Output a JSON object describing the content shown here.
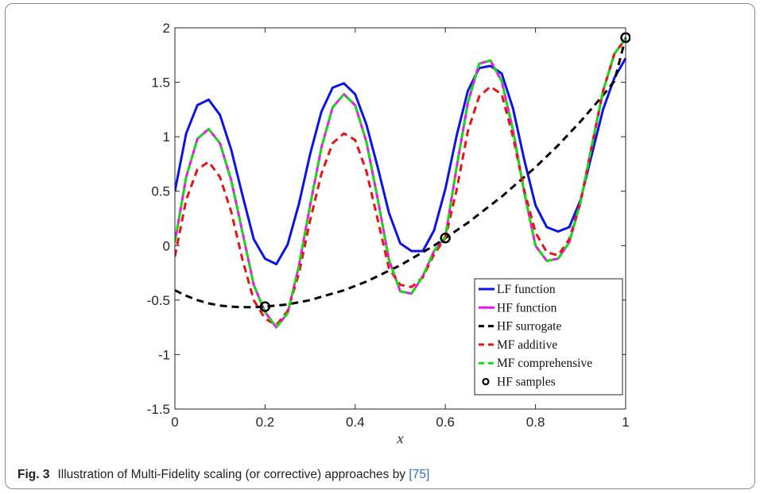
{
  "caption": {
    "label": "Fig. 3",
    "text": "Illustration of Multi-Fidelity scaling (or corrective) approaches by ",
    "ref": "[75]"
  },
  "chart_data": {
    "type": "line",
    "xlabel": "x",
    "ylabel": "",
    "title": "",
    "xlim": [
      0,
      1
    ],
    "ylim": [
      -1.5,
      2
    ],
    "xticks": [
      0,
      0.2,
      0.4,
      0.6,
      0.8,
      1
    ],
    "xtick_labels": [
      "0",
      "0.2",
      "0.4",
      "0.6",
      "0.8",
      "1"
    ],
    "yticks": [
      -1.5,
      -1,
      -0.5,
      0,
      0.5,
      1,
      1.5,
      2
    ],
    "ytick_labels": [
      "-1.5",
      "-1",
      "-0.5",
      "0",
      "0.5",
      "1",
      "1.5",
      "2"
    ],
    "legend_position": "bottom-right",
    "x": [
      0,
      0.025,
      0.05,
      0.075,
      0.1,
      0.125,
      0.15,
      0.175,
      0.2,
      0.225,
      0.25,
      0.275,
      0.3,
      0.325,
      0.35,
      0.375,
      0.4,
      0.425,
      0.45,
      0.475,
      0.5,
      0.525,
      0.55,
      0.575,
      0.6,
      0.625,
      0.65,
      0.675,
      0.7,
      0.725,
      0.75,
      0.775,
      0.8,
      0.825,
      0.85,
      0.875,
      0.9,
      0.925,
      0.95,
      0.975,
      1
    ],
    "series": [
      {
        "name": "LF function",
        "color": "#0a14e6",
        "dash": "solid",
        "values": [
          0.5,
          1.03,
          1.29,
          1.34,
          1.2,
          0.88,
          0.46,
          0.06,
          -0.12,
          -0.17,
          0.01,
          0.38,
          0.84,
          1.23,
          1.45,
          1.49,
          1.39,
          1.11,
          0.72,
          0.3,
          0.02,
          -0.05,
          -0.05,
          0.14,
          0.52,
          1.01,
          1.42,
          1.63,
          1.65,
          1.58,
          1.26,
          0.79,
          0.37,
          0.17,
          0.13,
          0.17,
          0.42,
          0.84,
          1.25,
          1.54,
          1.72
        ]
      },
      {
        "name": "HF function",
        "color": "#f014f0",
        "dash": "solid",
        "values": [
          0.03,
          0.63,
          0.98,
          1.07,
          0.94,
          0.6,
          0.12,
          -0.36,
          -0.61,
          -0.75,
          -0.62,
          -0.19,
          0.37,
          0.9,
          1.27,
          1.39,
          1.29,
          0.95,
          0.43,
          -0.13,
          -0.42,
          -0.44,
          -0.28,
          -0.05,
          0.08,
          0.72,
          1.31,
          1.67,
          1.7,
          1.51,
          1.06,
          0.49,
          0.0,
          -0.14,
          -0.12,
          0.03,
          0.4,
          0.92,
          1.42,
          1.76,
          1.9
        ]
      },
      {
        "name": "HF surrogate",
        "color": "#000000",
        "dash": "dashed",
        "values": [
          -0.41,
          -0.46,
          -0.5,
          -0.53,
          -0.55,
          -0.56,
          -0.565,
          -0.565,
          -0.56,
          -0.55,
          -0.54,
          -0.52,
          -0.5,
          -0.47,
          -0.44,
          -0.41,
          -0.37,
          -0.33,
          -0.28,
          -0.23,
          -0.18,
          -0.12,
          -0.06,
          0.0,
          0.07,
          0.14,
          0.21,
          0.29,
          0.37,
          0.45,
          0.54,
          0.63,
          0.72,
          0.82,
          0.92,
          1.03,
          1.14,
          1.26,
          1.38,
          1.51,
          1.91
        ]
      },
      {
        "name": "MF additive",
        "color": "#e61414",
        "dash": "dashed",
        "values": [
          -0.1,
          0.42,
          0.7,
          0.77,
          0.63,
          0.31,
          -0.13,
          -0.5,
          -0.67,
          -0.73,
          -0.6,
          -0.26,
          0.23,
          0.66,
          0.94,
          1.03,
          0.97,
          0.68,
          0.24,
          -0.21,
          -0.36,
          -0.38,
          -0.29,
          -0.08,
          0.07,
          0.51,
          1.05,
          1.37,
          1.46,
          1.39,
          1.0,
          0.51,
          0.12,
          -0.06,
          -0.09,
          0.06,
          0.4,
          0.91,
          1.42,
          1.76,
          1.9
        ]
      },
      {
        "name": "MF comprehensive",
        "color": "#14dc14",
        "dash": "dashed",
        "values": [
          0.03,
          0.63,
          0.98,
          1.07,
          0.94,
          0.6,
          0.12,
          -0.36,
          -0.61,
          -0.75,
          -0.62,
          -0.19,
          0.37,
          0.9,
          1.27,
          1.39,
          1.29,
          0.95,
          0.43,
          -0.13,
          -0.42,
          -0.44,
          -0.28,
          -0.05,
          0.08,
          0.72,
          1.31,
          1.67,
          1.7,
          1.51,
          1.06,
          0.49,
          0.0,
          -0.14,
          -0.12,
          0.03,
          0.4,
          0.92,
          1.42,
          1.76,
          1.9
        ]
      }
    ],
    "samples": {
      "name": "HF samples",
      "color": "#000000",
      "points": [
        [
          0.2,
          -0.56
        ],
        [
          0.6,
          0.07
        ],
        [
          1.0,
          1.91
        ]
      ]
    }
  }
}
